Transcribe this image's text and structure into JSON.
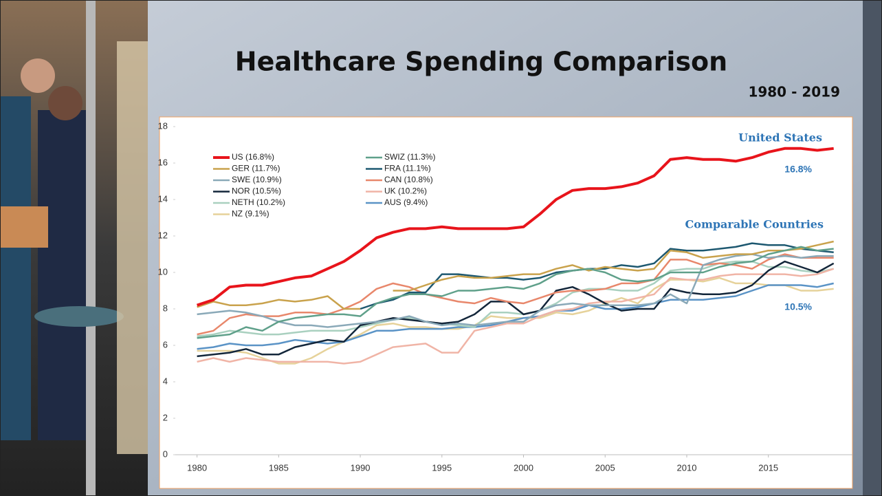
{
  "title": "Healthcare Spending Comparison",
  "subtitle": "1980 - 2019",
  "chart_data": {
    "type": "line",
    "annotations": [
      "United States",
      "16.8%",
      "Comparable Countries",
      "10.5%"
    ],
    "x": [
      1980,
      1981,
      1982,
      1983,
      1984,
      1985,
      1986,
      1987,
      1988,
      1989,
      1990,
      1991,
      1992,
      1993,
      1994,
      1995,
      1996,
      1997,
      1998,
      1999,
      2000,
      2001,
      2002,
      2003,
      2004,
      2005,
      2006,
      2007,
      2008,
      2009,
      2010,
      2011,
      2012,
      2013,
      2014,
      2015,
      2016,
      2017,
      2018,
      2019
    ],
    "xlim": [
      1977.7,
      2020.15
    ],
    "xticks": [
      1980,
      1985,
      1990,
      1995,
      2000,
      2005,
      2010,
      2015
    ],
    "ylim": [
      0,
      18
    ],
    "yticks": [
      0,
      2,
      4,
      6,
      8,
      10,
      12,
      14,
      16,
      18
    ],
    "series": [
      {
        "name": "US (16.8%)",
        "color": "#e8141b",
        "values": [
          8.2,
          8.5,
          9.2,
          9.3,
          9.3,
          9.5,
          9.7,
          9.8,
          10.2,
          10.6,
          11.2,
          11.9,
          12.2,
          12.4,
          12.4,
          12.5,
          12.4,
          12.4,
          12.4,
          12.4,
          12.5,
          13.2,
          14.0,
          14.5,
          14.6,
          14.6,
          14.7,
          14.9,
          15.3,
          16.2,
          16.3,
          16.2,
          16.2,
          16.1,
          16.3,
          16.6,
          16.8,
          16.8,
          16.7,
          16.8
        ]
      },
      {
        "name": "SWIZ (11.3%)",
        "color": "#5fa08a",
        "values": [
          6.4,
          6.5,
          6.6,
          7.0,
          6.8,
          7.3,
          7.5,
          7.6,
          7.7,
          7.7,
          7.6,
          8.3,
          8.6,
          8.8,
          8.8,
          8.7,
          9.0,
          9.0,
          9.1,
          9.2,
          9.1,
          9.4,
          9.9,
          10.1,
          10.2,
          10.0,
          9.6,
          9.5,
          9.6,
          10.0,
          10.0,
          10.0,
          10.3,
          10.5,
          10.6,
          11.0,
          11.2,
          11.4,
          11.2,
          11.3
        ]
      },
      {
        "name": "GER (11.7%)",
        "color": "#c9a24c",
        "values": [
          8.1,
          8.4,
          8.2,
          8.2,
          8.3,
          8.5,
          8.4,
          8.5,
          8.7,
          8.0,
          8.0,
          null,
          9.0,
          9.0,
          9.3,
          9.6,
          9.8,
          9.7,
          9.7,
          9.8,
          9.9,
          9.9,
          10.2,
          10.4,
          10.1,
          10.3,
          10.2,
          10.1,
          10.2,
          11.2,
          11.1,
          10.8,
          10.9,
          11.0,
          11.0,
          11.2,
          11.2,
          11.3,
          11.5,
          11.7
        ]
      },
      {
        "name": "FRA (11.1%)",
        "color": "#1d5870",
        "values": [
          null,
          null,
          null,
          null,
          null,
          null,
          null,
          null,
          null,
          null,
          8.0,
          8.3,
          8.5,
          8.9,
          8.9,
          9.9,
          9.9,
          9.8,
          9.7,
          9.7,
          9.6,
          9.7,
          10.0,
          10.1,
          10.2,
          10.2,
          10.4,
          10.3,
          10.5,
          11.3,
          11.2,
          11.2,
          11.3,
          11.4,
          11.6,
          11.5,
          11.5,
          11.3,
          11.2,
          11.1
        ]
      },
      {
        "name": "SWE (10.9%)",
        "color": "#8aa9b8",
        "values": [
          7.7,
          7.8,
          7.9,
          7.8,
          7.6,
          7.3,
          7.1,
          7.1,
          7.0,
          7.1,
          7.2,
          7.3,
          7.4,
          7.6,
          7.3,
          7.1,
          7.2,
          7.1,
          7.2,
          7.3,
          7.3,
          7.9,
          8.2,
          8.3,
          8.2,
          8.2,
          8.2,
          8.2,
          8.3,
          8.8,
          8.3,
          10.4,
          10.7,
          10.9,
          11.0,
          10.8,
          10.9,
          10.8,
          10.9,
          10.9
        ]
      },
      {
        "name": "CAN (10.8%)",
        "color": "#e8876b",
        "values": [
          6.6,
          6.8,
          7.5,
          7.7,
          7.6,
          7.6,
          7.8,
          7.8,
          7.7,
          8.0,
          8.4,
          9.1,
          9.4,
          9.2,
          8.8,
          8.6,
          8.4,
          8.3,
          8.6,
          8.4,
          8.3,
          8.6,
          8.9,
          9.0,
          9.0,
          9.1,
          9.4,
          9.4,
          9.6,
          10.7,
          10.7,
          10.4,
          10.5,
          10.4,
          10.2,
          10.7,
          11.0,
          10.8,
          10.8,
          10.8
        ]
      },
      {
        "name": "NOR (10.5%)",
        "color": "#13263a",
        "values": [
          5.4,
          5.5,
          5.6,
          5.8,
          5.5,
          5.5,
          5.9,
          6.1,
          6.3,
          6.2,
          7.1,
          7.3,
          7.5,
          7.4,
          7.3,
          7.2,
          7.3,
          7.7,
          8.4,
          8.4,
          7.7,
          7.9,
          9.0,
          9.2,
          8.8,
          8.3,
          7.9,
          8.0,
          8.0,
          9.1,
          8.9,
          8.8,
          8.8,
          8.9,
          9.3,
          10.1,
          10.6,
          10.3,
          10.0,
          10.5
        ]
      },
      {
        "name": "UK (10.2%)",
        "color": "#f0b4a6",
        "values": [
          5.1,
          5.3,
          5.1,
          5.3,
          5.2,
          5.1,
          5.1,
          5.1,
          5.1,
          5.0,
          5.1,
          5.5,
          5.9,
          6.0,
          6.1,
          5.6,
          5.6,
          6.8,
          7.0,
          7.2,
          7.2,
          7.6,
          7.9,
          8.0,
          8.3,
          8.4,
          8.4,
          8.6,
          8.8,
          9.7,
          9.6,
          9.6,
          9.8,
          9.9,
          9.9,
          9.9,
          9.9,
          9.8,
          9.9,
          10.2
        ]
      },
      {
        "name": "NETH (10.2%)",
        "color": "#a9d0bf",
        "values": [
          6.5,
          6.6,
          6.8,
          6.7,
          6.6,
          6.6,
          6.7,
          6.8,
          6.8,
          6.8,
          7.0,
          7.2,
          7.4,
          7.5,
          7.3,
          7.2,
          7.1,
          7.0,
          7.8,
          7.8,
          7.7,
          7.9,
          8.3,
          8.9,
          9.1,
          9.1,
          9.0,
          9.0,
          9.4,
          10.1,
          10.2,
          10.2,
          10.5,
          10.6,
          10.6,
          10.3,
          10.3,
          10.1,
          10.0,
          10.2
        ]
      },
      {
        "name": "AUS (9.4%)",
        "color": "#5a93c6",
        "values": [
          5.8,
          5.9,
          6.1,
          6.0,
          6.0,
          6.1,
          6.3,
          6.2,
          6.1,
          6.2,
          6.5,
          6.8,
          6.8,
          6.9,
          6.9,
          6.9,
          7.0,
          7.0,
          7.1,
          7.3,
          7.5,
          7.6,
          7.9,
          7.9,
          8.2,
          8.0,
          8.0,
          8.1,
          8.3,
          8.5,
          8.5,
          8.5,
          8.6,
          8.7,
          9.0,
          9.3,
          9.3,
          9.3,
          9.2,
          9.4
        ]
      },
      {
        "name": "NZ (9.1%)",
        "color": "#e6d29a",
        "values": [
          5.7,
          5.7,
          5.7,
          5.6,
          5.3,
          5.0,
          5.0,
          5.3,
          5.8,
          6.2,
          6.6,
          7.1,
          7.2,
          7.0,
          7.0,
          6.9,
          6.9,
          7.1,
          7.6,
          7.5,
          7.5,
          7.5,
          7.8,
          7.7,
          7.9,
          8.3,
          8.6,
          8.3,
          9.1,
          9.6,
          9.6,
          9.5,
          9.7,
          9.4,
          9.4,
          9.3,
          9.3,
          9.0,
          9.0,
          9.1
        ]
      }
    ]
  }
}
